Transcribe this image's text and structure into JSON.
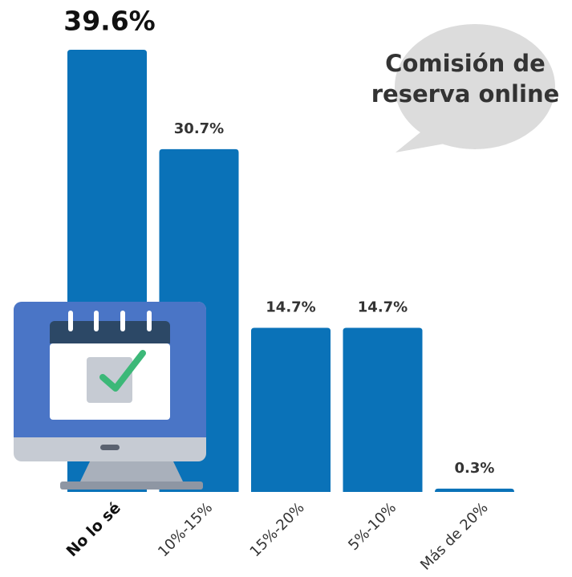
{
  "chart_data": {
    "type": "bar",
    "title": "Comisión de reserva online",
    "categories": [
      "No lo sé",
      "10%-15%",
      "15%-20%",
      "5%-10%",
      "Más de 20%"
    ],
    "values": [
      39.6,
      30.7,
      14.7,
      14.7,
      0.3
    ],
    "value_labels": [
      "39.6%",
      "30.7%",
      "14.7%",
      "14.7%",
      "0.3%"
    ],
    "color": "#0a72b8"
  }
}
